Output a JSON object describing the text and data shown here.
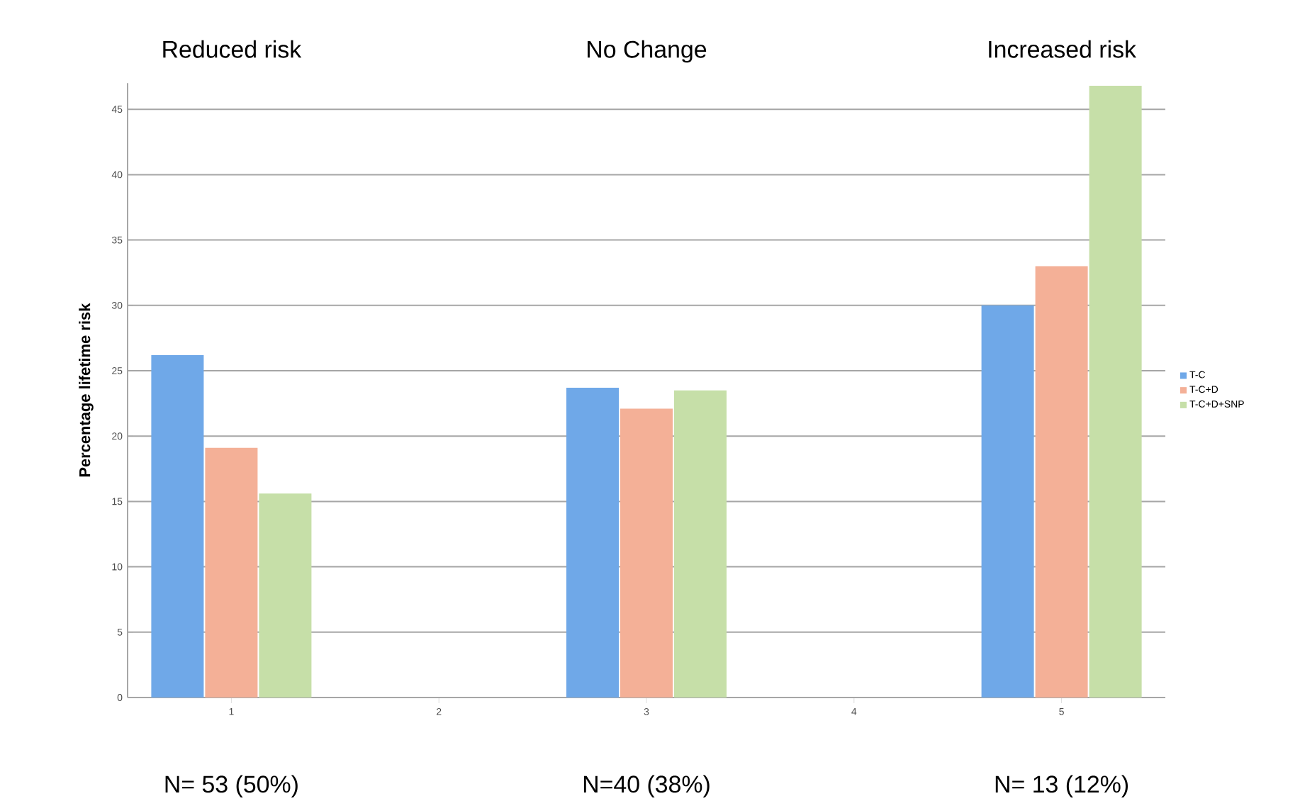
{
  "chart_data": {
    "type": "bar",
    "ylabel": "Percentage lifetime risk",
    "categories": [
      "1",
      "2",
      "3",
      "4",
      "5"
    ],
    "series": [
      {
        "name": "T-C",
        "color": "#6fa8e8",
        "values": [
          26.2,
          null,
          23.7,
          null,
          30
        ]
      },
      {
        "name": "T-C+D",
        "color": "#f4b097",
        "values": [
          19.1,
          null,
          22.1,
          null,
          33
        ]
      },
      {
        "name": "T-C+D+SNP",
        "color": "#c6dfa8",
        "values": [
          15.6,
          null,
          23.5,
          null,
          46.8
        ]
      }
    ],
    "ylim": [
      0,
      47
    ],
    "yticks": [
      0,
      5,
      10,
      15,
      20,
      25,
      30,
      35,
      40,
      45
    ],
    "grid": "y",
    "legend": "right",
    "annotations": [
      "Reduced risk",
      "No Change",
      "Increased risk",
      "N= 53 (50%)",
      "N=40 (38%)",
      "N= 13 (12%)"
    ]
  }
}
